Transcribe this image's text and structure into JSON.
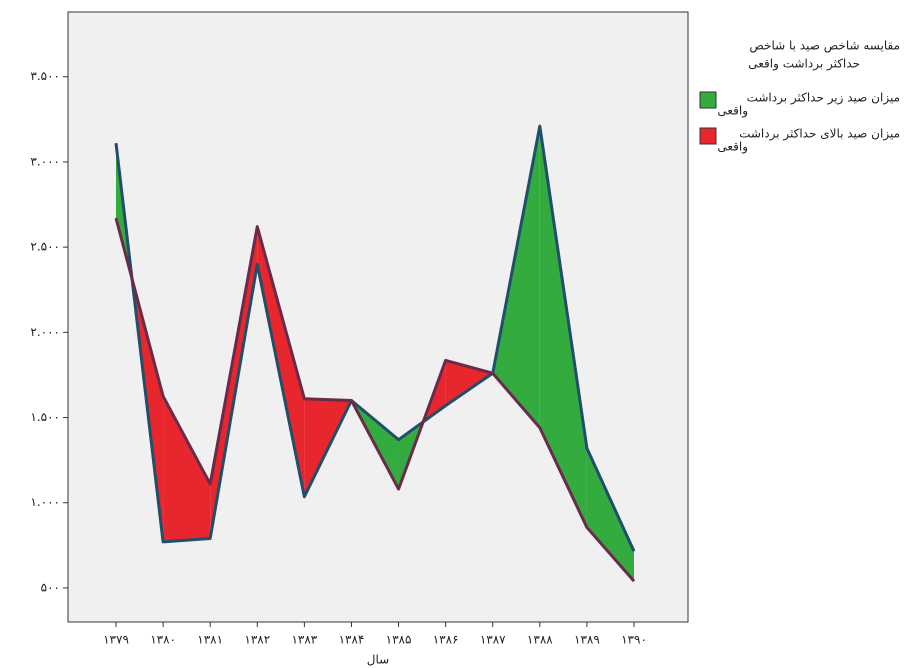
{
  "chart_data": {
    "type": "difference",
    "x_label": "سال",
    "categories": [
      "۱۳۷۹",
      "۱۳۸۰",
      "۱۳۸۱",
      "۱۳۸۲",
      "۱۳۸۳",
      "۱۳۸۴",
      "۱۳۸۵",
      "۱۳۸۶",
      "۱۳۸۷",
      "۱۳۸۸",
      "۱۳۸۹",
      "۱۳۹۰"
    ],
    "series": [
      {
        "values": [
          3110,
          770,
          790,
          2400,
          1035,
          1600,
          1370,
          1570,
          1760,
          3210,
          1320,
          715
        ],
        "color": "#1f4f6a"
      },
      {
        "values": [
          2670,
          1625,
          1110,
          2620,
          1610,
          1600,
          1080,
          1835,
          1760,
          1440,
          855,
          540
        ],
        "color": "#6a2a4a"
      }
    ],
    "ylim": [
      300,
      3880
    ],
    "yticks": [
      {
        "value": 500,
        "label": "۵۰۰"
      },
      {
        "value": 1000,
        "label": "۱.۰۰۰"
      },
      {
        "value": 1500,
        "label": "۱.۵۰۰"
      },
      {
        "value": 2000,
        "label": "۲.۰۰۰"
      },
      {
        "value": 2500,
        "label": "۲.۵۰۰"
      },
      {
        "value": 3000,
        "label": "۳.۰۰۰"
      },
      {
        "value": 3500,
        "label": "۳.۵۰۰"
      }
    ],
    "legend": {
      "title": [
        "مقایسه شاخص صید با شاخص",
        "حداکثر برداشت واقعی"
      ],
      "items": [
        {
          "label": [
            "میزان صید زیر حداکثر برداشت",
            "واقعی"
          ],
          "color": "#33ab3f"
        },
        {
          "label": [
            "میزان صید بالای حداکثر برداشت",
            "واقعی"
          ],
          "color": "#e8262e"
        }
      ]
    }
  }
}
